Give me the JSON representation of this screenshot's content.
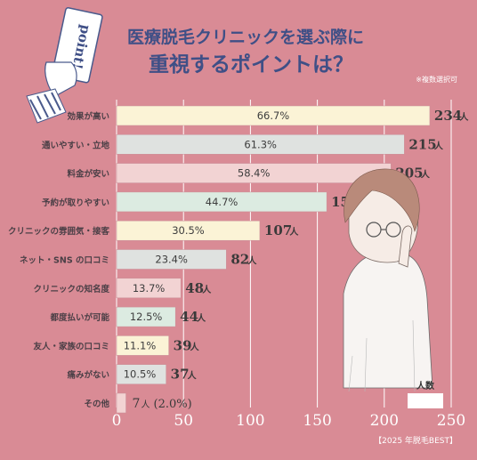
{
  "header": {
    "badge": "point!",
    "title_line1": "医療脱毛クリニックを選ぶ際に",
    "title_line2": "重視するポイントは？",
    "note": "※複数選択可"
  },
  "legend_label": "人数",
  "footer": "【2025 年脱毛BEST】",
  "colors": {
    "background": "#d98b95",
    "title": "#3f4f86",
    "bar_cream": "#fbf3d6",
    "bar_grey": "#dfe2e0",
    "bar_pink": "#f2d3d3",
    "bar_mint": "#dcebe1"
  },
  "chart_data": {
    "type": "bar",
    "orientation": "horizontal",
    "categories": [
      "効果が高い",
      "通いやすい・立地",
      "料金が安い",
      "予約が取りやすい",
      "クリニックの雰囲気・接客",
      "ネット・SNS の口コミ",
      "クリニックの知名度",
      "都度払いが可能",
      "友人・家族の口コミ",
      "痛みがない",
      "その他"
    ],
    "values": [
      234,
      215,
      205,
      157,
      107,
      82,
      48,
      44,
      39,
      37,
      7
    ],
    "percent_labels": [
      "66.7%",
      "61.3%",
      "58.4%",
      "44.7%",
      "30.5%",
      "23.4%",
      "13.7%",
      "12.5%",
      "11.1%",
      "10.5%",
      "(2.0%)"
    ],
    "unit": "人",
    "xlim": [
      0,
      250
    ],
    "xticks": [
      0,
      50,
      100,
      150,
      200,
      250
    ],
    "xlabel": "人数"
  }
}
